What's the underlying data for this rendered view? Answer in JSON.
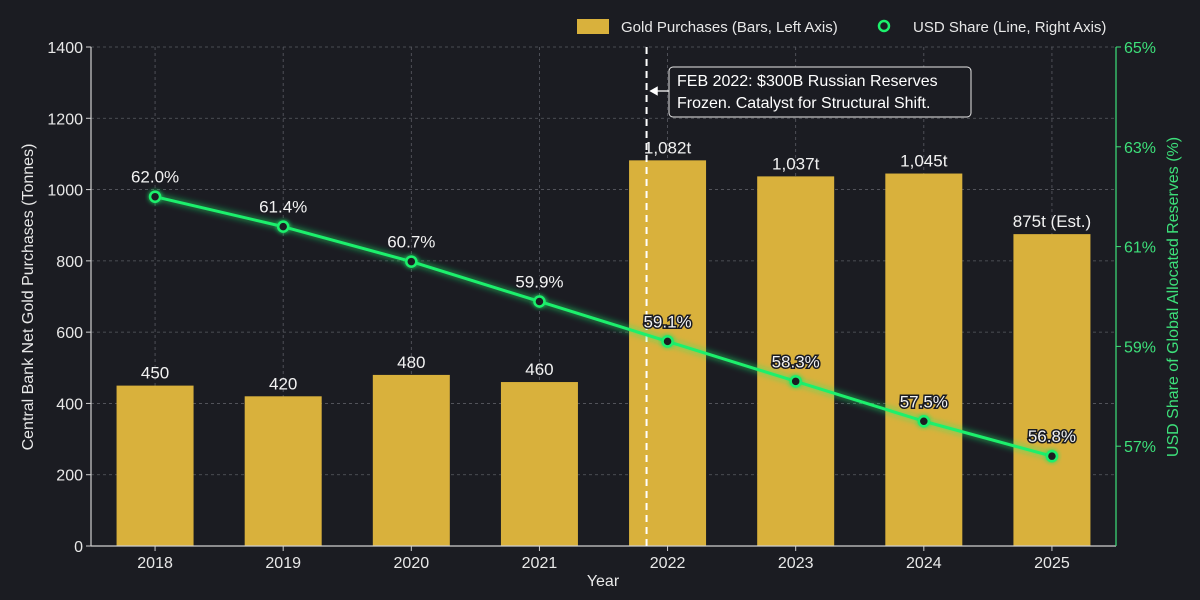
{
  "chart_data": {
    "type": "bar+line",
    "categories": [
      "2018",
      "2019",
      "2020",
      "2021",
      "2022",
      "2023",
      "2024",
      "2025"
    ],
    "xlabel": "Year",
    "bars": {
      "name": "Gold Purchases (Bars, Left Axis)",
      "values": [
        450,
        420,
        480,
        460,
        1082,
        1037,
        1045,
        875
      ],
      "labels": [
        "450",
        "420",
        "480",
        "460",
        "1,082t",
        "1,037t",
        "1,045t",
        "875t (Est.)"
      ],
      "color": "#d9b13c"
    },
    "line": {
      "name": "USD Share (Line, Right Axis)",
      "values": [
        62.0,
        61.4,
        60.7,
        59.9,
        59.1,
        58.3,
        57.5,
        56.8
      ],
      "labels": [
        "62.0%",
        "61.4%",
        "60.7%",
        "59.9%",
        "59.1%",
        "58.3%",
        "57.5%",
        "56.8%"
      ],
      "color": "#1cf06c"
    },
    "left_axis": {
      "label": "Central Bank Net Gold Purchases (Tonnes)",
      "range": [
        0,
        1400
      ],
      "ticks": [
        0,
        200,
        400,
        600,
        800,
        1000,
        1200,
        1400
      ],
      "tick_labels": [
        "0",
        "200",
        "400",
        "600",
        "800",
        "1000",
        "1200",
        "1400"
      ]
    },
    "right_axis": {
      "label": "USD Share of Global Allocated Reserves (%)",
      "range": [
        55,
        65
      ],
      "ticks": [
        57,
        59,
        61,
        63,
        65
      ],
      "tick_labels": [
        "57%",
        "59%",
        "61%",
        "63%",
        "65%"
      ],
      "color": "#3de07a"
    },
    "annotation": {
      "x_category": "2022",
      "lines": [
        "FEB 2022: $300B Russian Reserves",
        "Frozen. Catalyst for Structural Shift."
      ]
    },
    "grid": true,
    "legend_position": "top-right"
  }
}
